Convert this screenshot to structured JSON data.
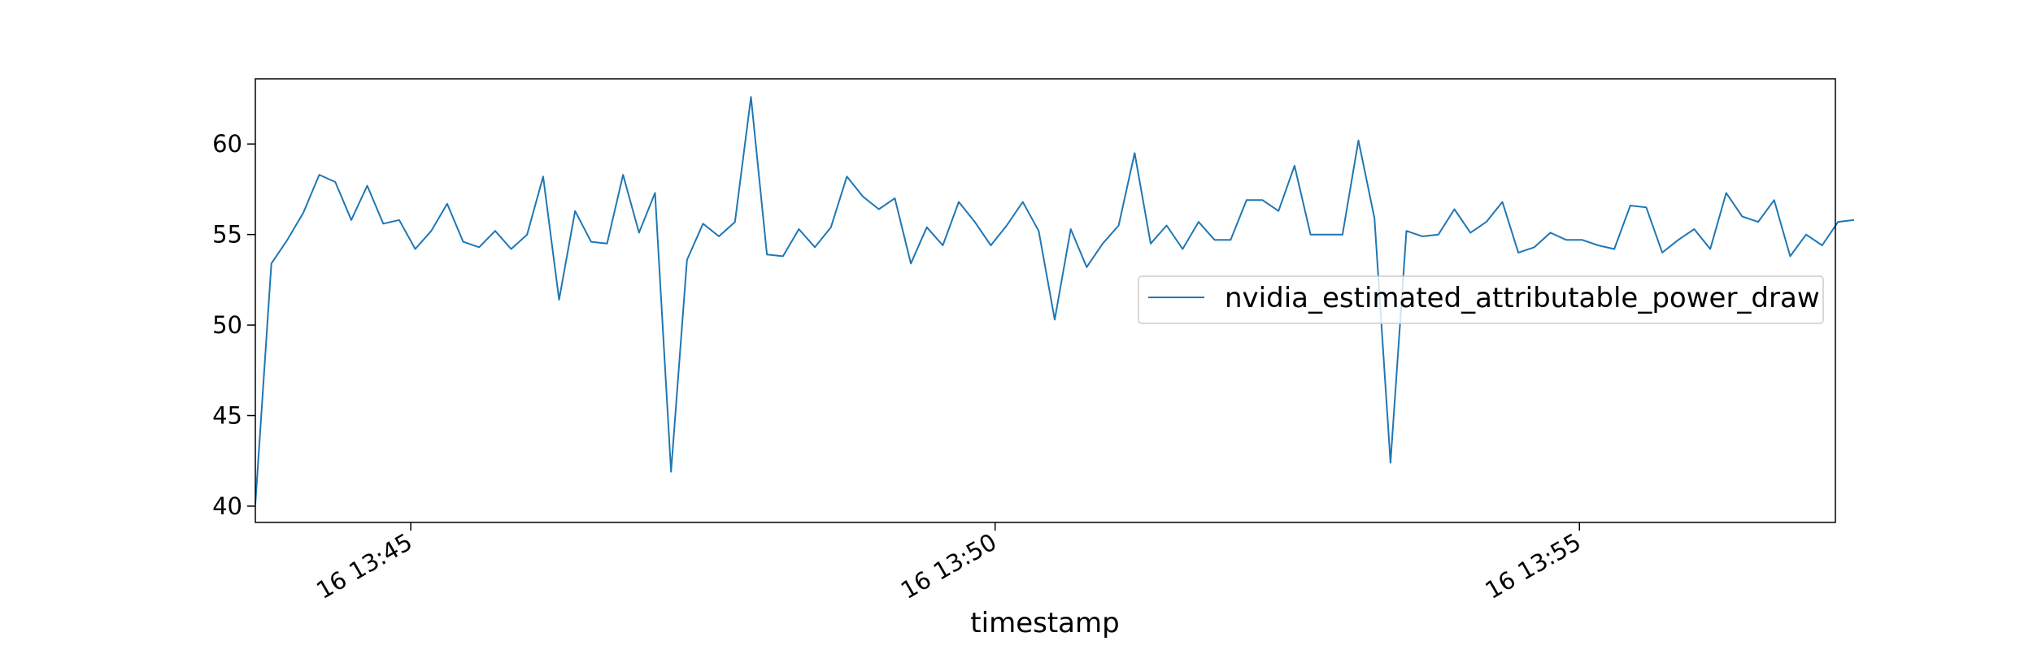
{
  "chart_data": {
    "type": "line",
    "title": "",
    "xlabel": "timestamp",
    "ylabel": "",
    "x_tick_labels": [
      "16 13:45",
      "16 13:50",
      "16 13:55"
    ],
    "x_tick_minutes": [
      45,
      50,
      55
    ],
    "x_range_minutes": [
      43.67,
      57.19
    ],
    "y_ticks": [
      40,
      45,
      50,
      55,
      60
    ],
    "ylim": [
      39.1,
      63.6
    ],
    "grid": false,
    "legend_position": "center-right",
    "series": [
      {
        "name": "nvidia_estimated_attributable_power_draw",
        "color": "#1f77b4",
        "x_start_minutes": 43.67,
        "x_step_minutes": 0.1368,
        "values": [
          40.1,
          53.4,
          54.7,
          56.2,
          58.3,
          57.9,
          55.8,
          57.7,
          55.6,
          55.8,
          54.2,
          55.2,
          56.7,
          54.6,
          54.3,
          55.2,
          54.2,
          55.0,
          58.2,
          51.4,
          56.3,
          54.6,
          54.5,
          58.3,
          55.1,
          57.3,
          41.9,
          53.6,
          55.6,
          54.9,
          55.7,
          62.6,
          53.9,
          53.8,
          55.3,
          54.3,
          55.4,
          58.2,
          57.1,
          56.4,
          57.0,
          53.4,
          55.4,
          54.4,
          56.8,
          55.7,
          54.4,
          55.5,
          56.8,
          55.2,
          50.3,
          55.3,
          53.2,
          54.5,
          55.5,
          59.5,
          54.5,
          55.5,
          54.2,
          55.7,
          54.7,
          54.7,
          56.9,
          56.9,
          56.3,
          58.8,
          55.0,
          55.0,
          55.0,
          60.2,
          55.9,
          42.4,
          55.2,
          54.9,
          55.0,
          56.4,
          55.1,
          55.7,
          56.8,
          54.0,
          54.3,
          55.1,
          54.7,
          54.7,
          54.4,
          54.2,
          56.6,
          56.5,
          54.0,
          54.7,
          55.3,
          54.2,
          57.3,
          56.0,
          55.7,
          56.9,
          53.8,
          55.0,
          54.4,
          55.7,
          55.8
        ]
      }
    ]
  }
}
